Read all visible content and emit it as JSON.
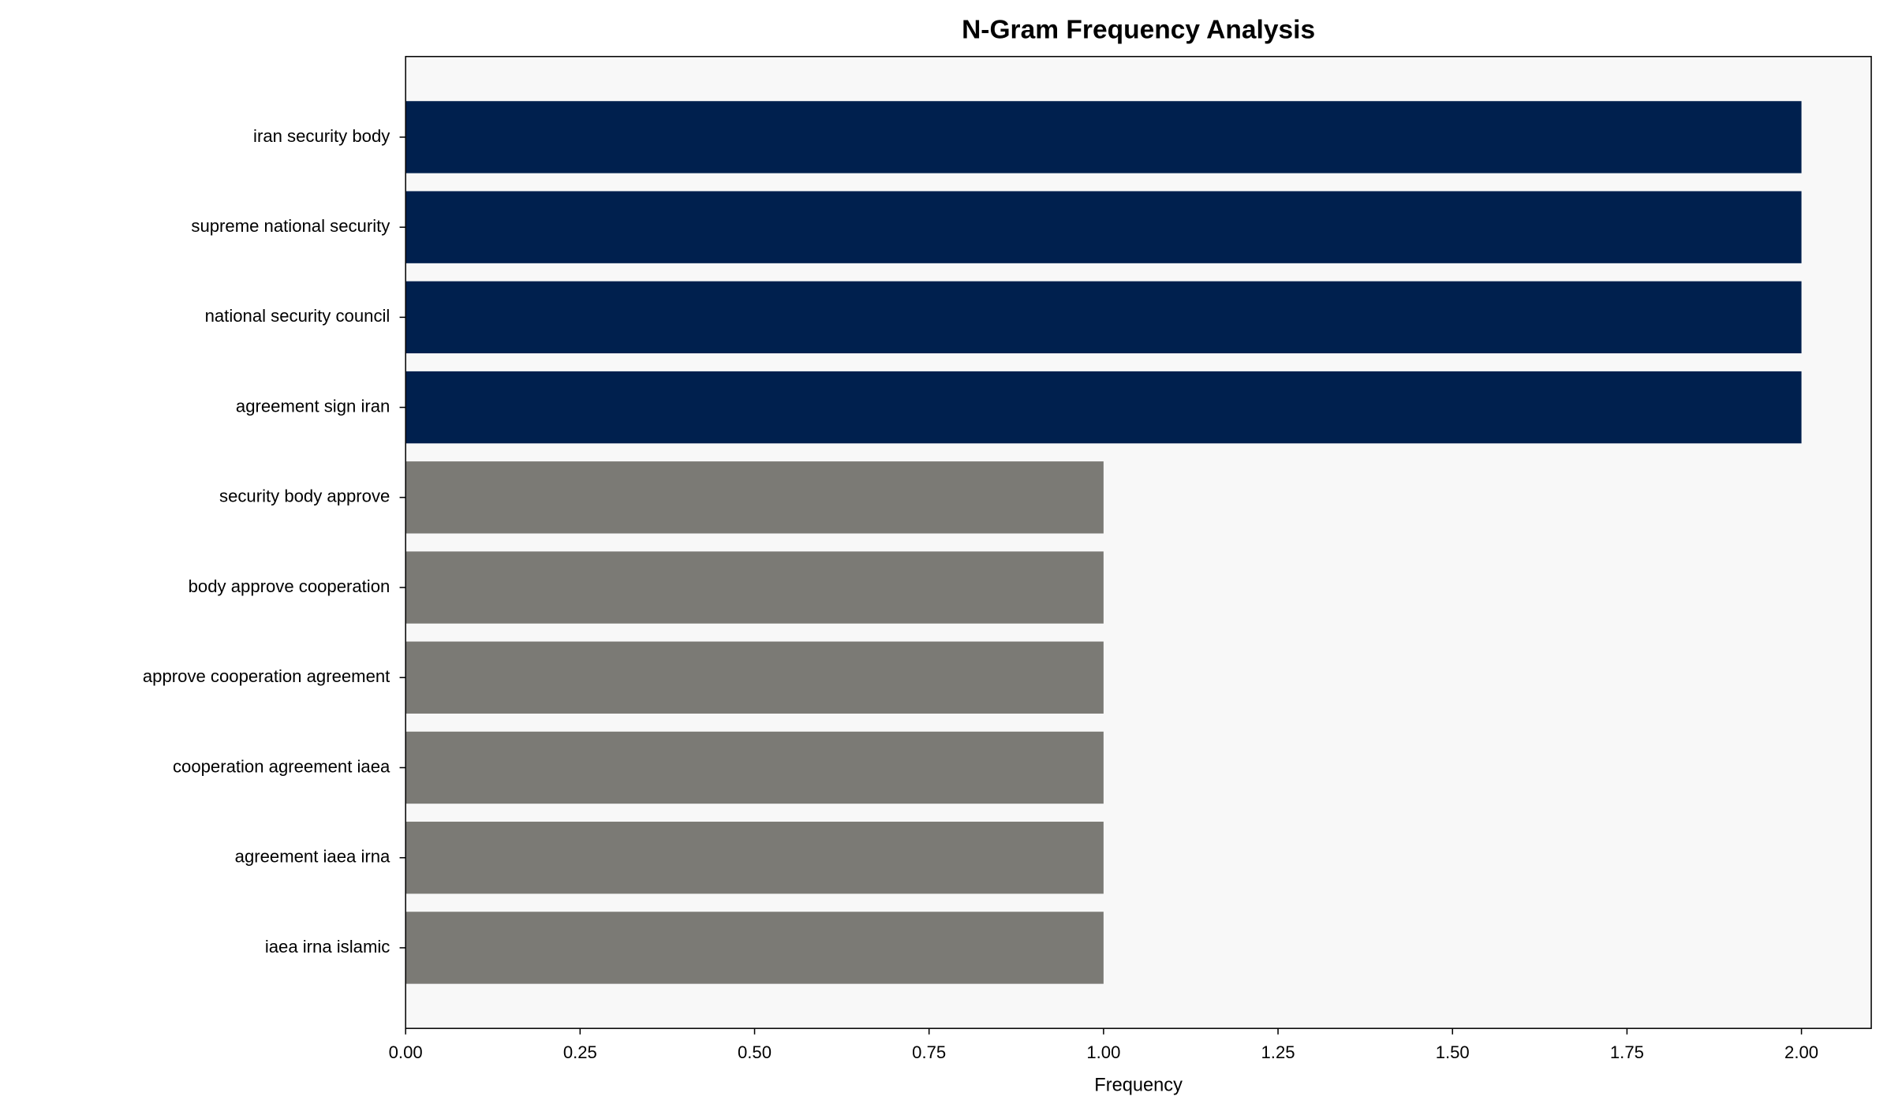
{
  "chart_data": {
    "type": "barh",
    "title": "N-Gram Frequency Analysis",
    "x_label": "Frequency",
    "categories": [
      "iran security body",
      "supreme national security",
      "national security council",
      "agreement sign iran",
      "security body approve",
      "body approve cooperation",
      "approve cooperation agreement",
      "cooperation agreement iaea",
      "agreement iaea irna",
      "iaea irna islamic"
    ],
    "values": [
      2,
      2,
      2,
      2,
      1,
      1,
      1,
      1,
      1,
      1
    ],
    "colors": [
      "#00204e",
      "#00204e",
      "#00204e",
      "#00204e",
      "#7b7a75",
      "#7b7a75",
      "#7b7a75",
      "#7b7a75",
      "#7b7a75",
      "#7b7a75"
    ],
    "xlim": [
      0,
      2.1
    ],
    "xticks": [
      {
        "value": 0,
        "label": "0.00"
      },
      {
        "value": 0.25,
        "label": "0.25"
      },
      {
        "value": 0.5,
        "label": "0.50"
      },
      {
        "value": 0.75,
        "label": "0.75"
      },
      {
        "value": 1,
        "label": "1.00"
      },
      {
        "value": 1.25,
        "label": "1.25"
      },
      {
        "value": 1.5,
        "label": "1.50"
      },
      {
        "value": 1.75,
        "label": "1.75"
      },
      {
        "value": 2,
        "label": "2.00"
      }
    ],
    "background": "#f8f8f8"
  }
}
